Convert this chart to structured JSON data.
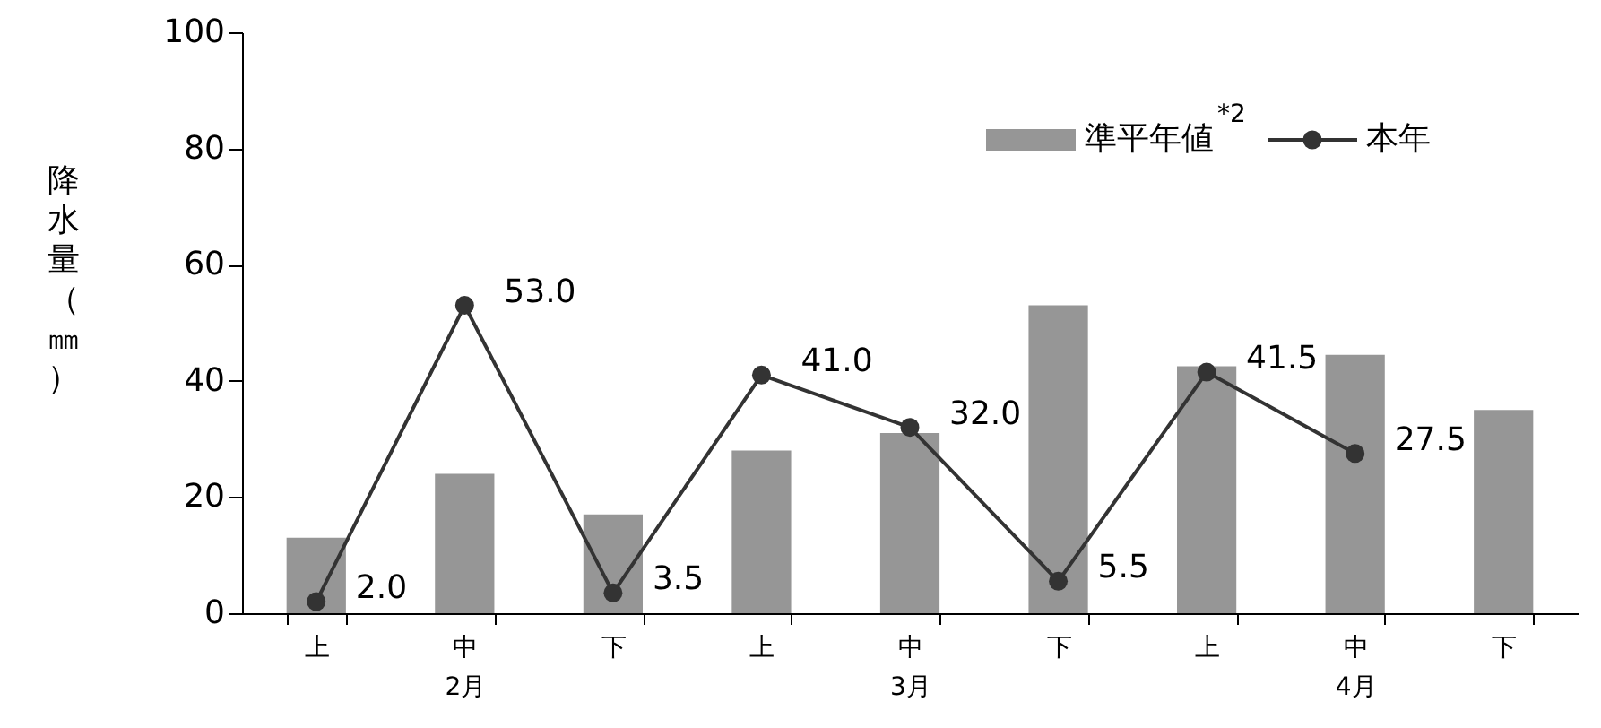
{
  "chart_data": {
    "type": "bar",
    "ylabel": "降水量（㎜）",
    "categories": [
      "上",
      "中\n2月",
      "下",
      "上",
      "中\n3月",
      "下",
      "上",
      "中\n4月",
      "下"
    ],
    "series": [
      {
        "name": "準平年値$^{*2}$",
        "color": "#969696",
        "values": [
          13,
          24,
          17,
          28,
          31,
          53,
          42.5,
          44.5,
          35
        ]
      },
      {
        "name": "本年",
        "type": "line",
        "color": "#333333",
        "values": [
          2.0,
          53.0,
          3.5,
          41.0,
          32.0,
          5.5,
          41.5,
          27.5,
          null
        ],
        "value_labels": [
          "2.0",
          "53.0",
          "3.5",
          "41.0",
          "32.0",
          "5.5",
          "41.5",
          "27.5",
          null
        ]
      }
    ],
    "ylim": [
      0,
      100
    ],
    "yticks": [
      0,
      20,
      40,
      60,
      80,
      100
    ],
    "grid": false,
    "legend": "top right",
    "marker": "circle",
    "line_style": "solid"
  }
}
